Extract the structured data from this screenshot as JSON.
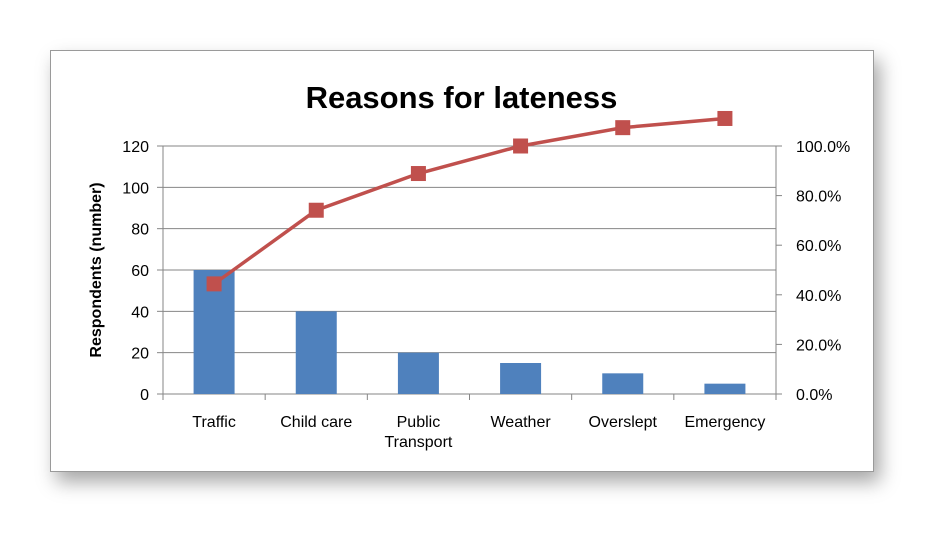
{
  "chart_data": {
    "type": "bar",
    "title": "Reasons for lateness",
    "ylabel": "Respondents (number)",
    "categories": [
      "Traffic",
      "Child care",
      "Public\nTransport",
      "Weather",
      "Overslept",
      "Emergency"
    ],
    "ylim": [
      0,
      120
    ],
    "yticks": [
      "0",
      "20",
      "40",
      "60",
      "80",
      "100",
      "120"
    ],
    "y2lim": [
      0,
      100
    ],
    "y2ticks": [
      "0.0%",
      "20.0%",
      "40.0%",
      "60.0%",
      "80.0%",
      "100.0%"
    ],
    "grid": true,
    "series": [
      {
        "type": "bar",
        "axis": "left",
        "values": [
          60,
          40,
          20,
          15,
          10,
          5
        ]
      },
      {
        "type": "line",
        "axis": "right",
        "marker": "square",
        "values": [
          44.4,
          74.1,
          88.9,
          100.0,
          107.4,
          111.1
        ]
      }
    ],
    "colors": {
      "bar": "#4F81BD",
      "line": "#C0504D",
      "grid": "#868686"
    }
  }
}
